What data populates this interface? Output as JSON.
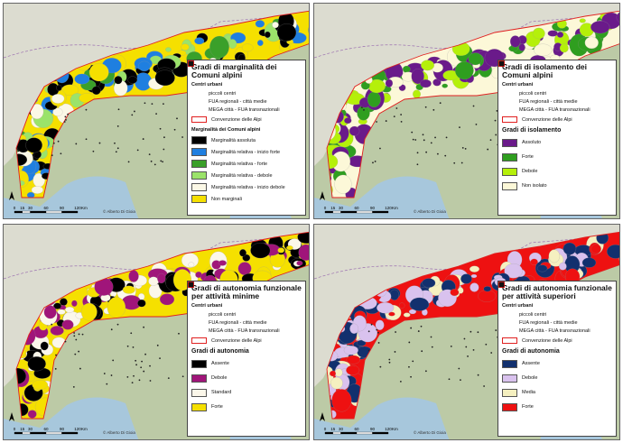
{
  "panels": [
    {
      "title": "Gradi di marginalità dei Comuni alpini",
      "urban_header": "Centri urbani",
      "urban_items": [
        "piccoli centri",
        "FUA regionali - città medie",
        "MEGA città - FUA transnazionali"
      ],
      "boundary": "Convenzione delle Alpi",
      "class_header": "Marginalità dei Comuni alpini",
      "classes": [
        {
          "label": "Marginalità assoluta",
          "color": "#000000"
        },
        {
          "label": "Marginalità relativa - inizio forte",
          "color": "#1f7fe0"
        },
        {
          "label": "Marginalità relativa - forte",
          "color": "#3aa02a"
        },
        {
          "label": "Marginalità relativa - debole",
          "color": "#9be36a"
        },
        {
          "label": "Marginalità relativa - inizio debole",
          "color": "#fbf8e6"
        },
        {
          "label": "Non marginali",
          "color": "#f5e000"
        }
      ],
      "scale_ticks": [
        0,
        15,
        30,
        60,
        90,
        120
      ],
      "scale_unit": "Km",
      "credit": "© Alberto Di Gioia"
    },
    {
      "title": "Gradi di isolamento dei Comuni alpini",
      "urban_header": "Centri urbani",
      "urban_items": [
        "piccoli centri",
        "FUA regionali - città medie",
        "MEGA città - FUA transnazionali"
      ],
      "boundary": "Convenzione delle Alpi",
      "class_header": "Gradi di isolamento",
      "classes": [
        {
          "label": "Assoluto",
          "color": "#6a1a8a"
        },
        {
          "label": "Forte",
          "color": "#2f9e1f"
        },
        {
          "label": "Debole",
          "color": "#b5f00a"
        },
        {
          "label": "Non isolato",
          "color": "#fcf8d8"
        }
      ],
      "scale_ticks": [
        0,
        15,
        30,
        60,
        90,
        120
      ],
      "scale_unit": "Km",
      "credit": "© Alberto Di Gioia"
    },
    {
      "title": "Gradi di autonomia funzionale per attività minime",
      "urban_header": "Centri urbani",
      "urban_items": [
        "piccoli centri",
        "FUA regionali - città medie",
        "MEGA città - FUA transnazionali"
      ],
      "boundary": "Convenzione delle Alpi",
      "class_header": "Gradi di autonomia",
      "classes": [
        {
          "label": "Assente",
          "color": "#000000"
        },
        {
          "label": "Debole",
          "color": "#a0157a"
        },
        {
          "label": "Standard",
          "color": "#fbf7ea"
        },
        {
          "label": "Forte",
          "color": "#f5e000"
        }
      ],
      "scale_ticks": [
        0,
        15,
        30,
        60,
        90,
        120
      ],
      "scale_unit": "Km",
      "credit": "© Alberto Di Gioia"
    },
    {
      "title": "Gradi di autonomia funzionale per attività superiori",
      "urban_header": "Centri urbani",
      "urban_items": [
        "piccoli centri",
        "FUA regionali - città medie",
        "MEGA città - FUA transnazionali"
      ],
      "boundary": "Convenzione delle Alpi",
      "class_header": "Gradi di autonomia",
      "classes": [
        {
          "label": "Assente",
          "color": "#12306e"
        },
        {
          "label": "Debole",
          "color": "#d9c2ee"
        },
        {
          "label": "Media",
          "color": "#f5f0c0"
        },
        {
          "label": "Forte",
          "color": "#ee1111"
        }
      ],
      "scale_ticks": [
        0,
        15,
        30,
        60,
        90,
        120
      ],
      "scale_unit": "Km",
      "credit": "© Alberto Di Gioia"
    }
  ]
}
